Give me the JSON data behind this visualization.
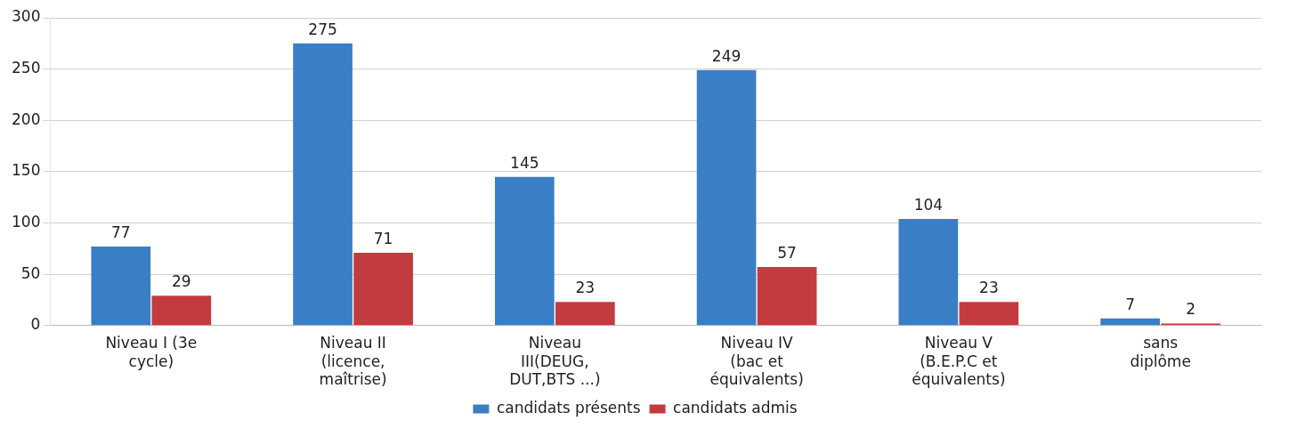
{
  "chart_data": {
    "type": "bar",
    "categories": [
      "Niveau I (3e\ncycle)",
      "Niveau II\n(licence,\nmaîtrise)",
      "Niveau\nIII(DEUG,\nDUT,BTS ...)",
      "Niveau IV\n(bac et\néquivalents)",
      "Niveau V\n(B.E.P.C et\néquivalents)",
      "sans\ndiplôme"
    ],
    "series": [
      {
        "name": "candidats présents",
        "color": "#3a7ec6",
        "values": [
          77,
          275,
          145,
          249,
          104,
          7
        ]
      },
      {
        "name": "candidats admis",
        "color": "#c33b3f",
        "values": [
          29,
          71,
          23,
          57,
          23,
          2
        ]
      }
    ],
    "ylim": [
      0,
      300
    ],
    "yticks": [
      0,
      50,
      100,
      150,
      200,
      250,
      300
    ],
    "grid": "y",
    "legend": "bottom",
    "data_labels": true
  }
}
